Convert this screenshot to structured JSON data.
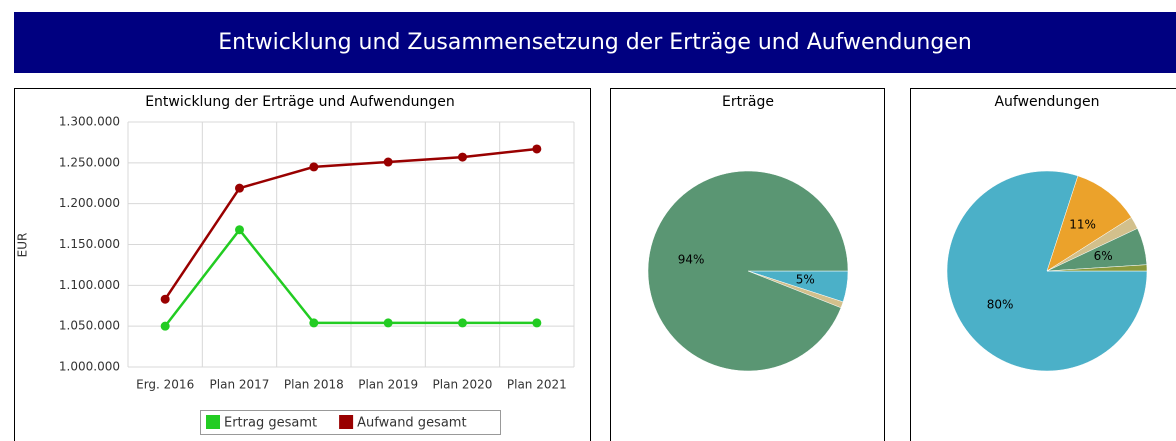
{
  "title": "Entwicklung und Zusammensetzung der Erträge und Aufwendungen",
  "chart_data": [
    {
      "type": "line",
      "title": "Entwicklung der Erträge und Aufwendungen",
      "y_label": "EUR",
      "categories": [
        "Erg. 2016",
        "Plan 2017",
        "Plan 2018",
        "Plan 2019",
        "Plan 2020",
        "Plan 2021"
      ],
      "series": [
        {
          "name": "Ertrag gesamt",
          "color": "#22cc22",
          "values": [
            1050000,
            1168000,
            1054000,
            1054000,
            1054000,
            1054000
          ]
        },
        {
          "name": "Aufwand gesamt",
          "color": "#990000",
          "values": [
            1083000,
            1219000,
            1245000,
            1251000,
            1257000,
            1267000
          ]
        }
      ],
      "ylim": [
        1000000,
        1300000
      ],
      "yticks": [
        {
          "value": 1000000,
          "label": "1.000.000"
        },
        {
          "value": 1050000,
          "label": "1.050.000"
        },
        {
          "value": 1100000,
          "label": "1.100.000"
        },
        {
          "value": 1150000,
          "label": "1.150.000"
        },
        {
          "value": 1200000,
          "label": "1.200.000"
        },
        {
          "value": 1250000,
          "label": "1.250.000"
        },
        {
          "value": 1300000,
          "label": "1.300.000"
        }
      ],
      "grid": true,
      "legend": "bottom"
    },
    {
      "type": "pie",
      "title": "Erträge",
      "values": [
        5,
        1,
        94
      ],
      "value_labels": [
        "5%",
        null,
        "94%"
      ],
      "colors": [
        "#4bb0c8",
        "#d2c08c",
        "#5a9673"
      ]
    },
    {
      "type": "pie",
      "title": "Aufwendungen",
      "values": [
        80,
        11,
        2,
        6,
        1
      ],
      "value_labels": [
        "80%",
        "11%",
        null,
        "6%",
        null
      ],
      "colors": [
        "#4bb0c8",
        "#eba22b",
        "#d2c08c",
        "#5a9673",
        "#8a9a3c"
      ]
    }
  ]
}
